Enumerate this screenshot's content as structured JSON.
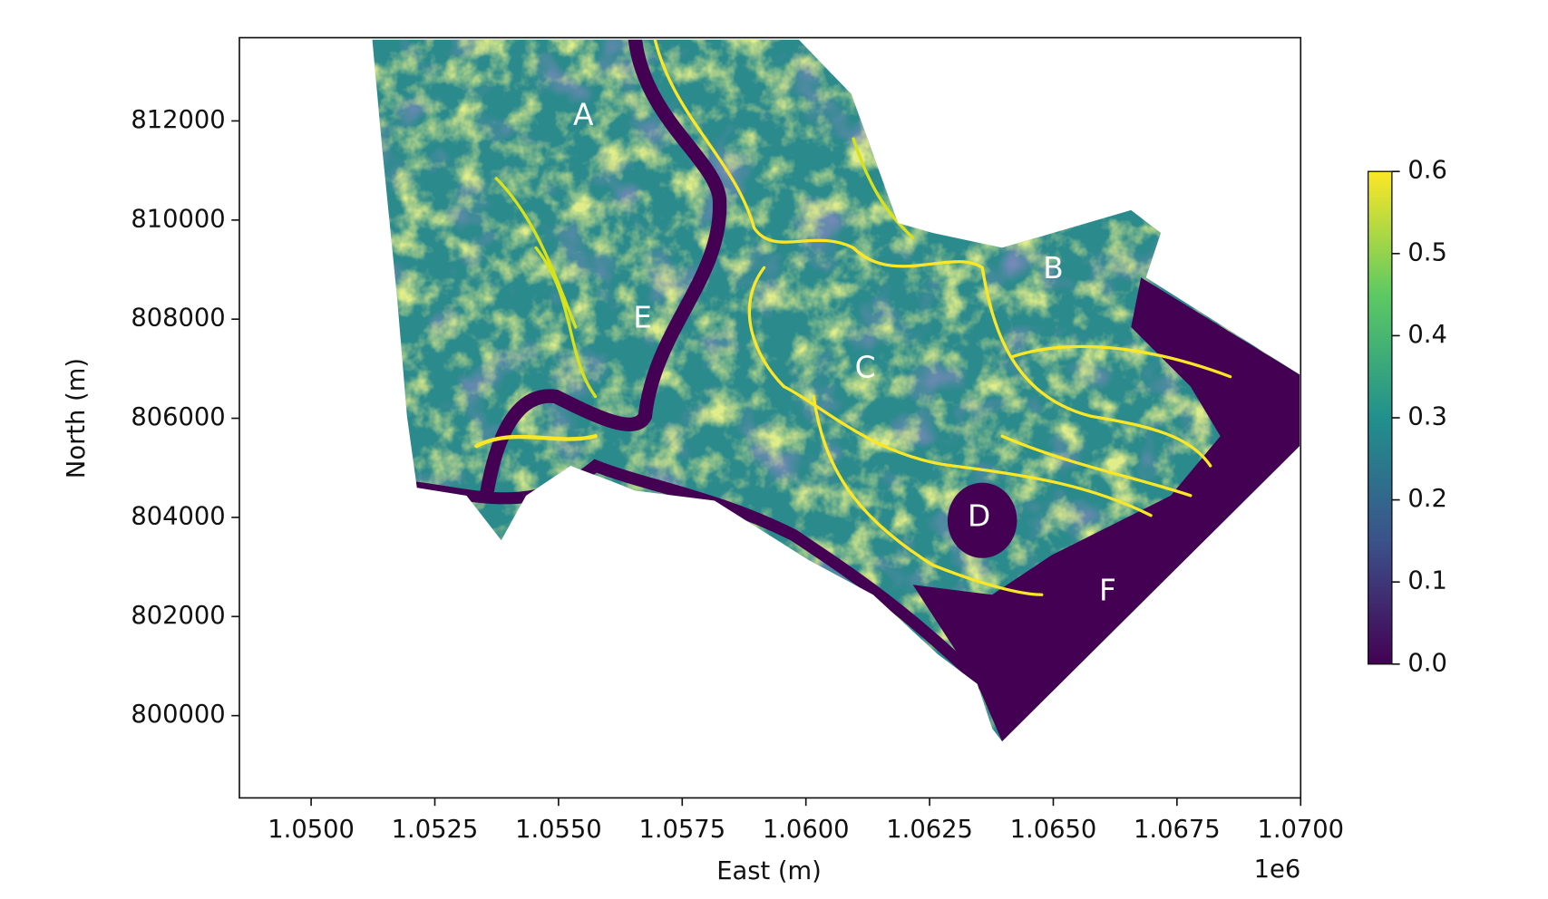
{
  "chart_data": {
    "type": "raster",
    "xlabel": "East (m)",
    "ylabel": "North (m)",
    "x_offset_label": "1e6",
    "xlim": [
      1048550,
      1070000
    ],
    "ylim": [
      798340,
      813680
    ],
    "xticks": [
      {
        "value": 1050000,
        "label": "1.0500"
      },
      {
        "value": 1052500,
        "label": "1.0525"
      },
      {
        "value": 1055000,
        "label": "1.0550"
      },
      {
        "value": 1057500,
        "label": "1.0575"
      },
      {
        "value": 1060000,
        "label": "1.0600"
      },
      {
        "value": 1062500,
        "label": "1.0625"
      },
      {
        "value": 1065000,
        "label": "1.0650"
      },
      {
        "value": 1067500,
        "label": "1.0675"
      },
      {
        "value": 1070000,
        "label": "1.0700"
      }
    ],
    "yticks": [
      800000,
      802000,
      804000,
      806000,
      808000,
      810000,
      812000
    ],
    "colorbar": {
      "lim": [
        0.0,
        0.6
      ],
      "ticks": [
        {
          "value": 0.0,
          "label": "0.0"
        },
        0.1,
        0.2,
        0.3,
        0.4,
        0.5,
        0.6
      ],
      "colors": [
        "#440154",
        "#3b528b",
        "#21908d",
        "#5dc963",
        "#fde725"
      ]
    },
    "annotations": [
      {
        "text": "A",
        "x": 1055500,
        "y": 812100
      },
      {
        "text": "B",
        "x": 1065000,
        "y": 809000
      },
      {
        "text": "C",
        "x": 1061200,
        "y": 807000
      },
      {
        "text": "D",
        "x": 1063500,
        "y": 804000
      },
      {
        "text": "E",
        "x": 1056700,
        "y": 808000
      },
      {
        "text": "F",
        "x": 1066100,
        "y": 802500
      }
    ]
  }
}
